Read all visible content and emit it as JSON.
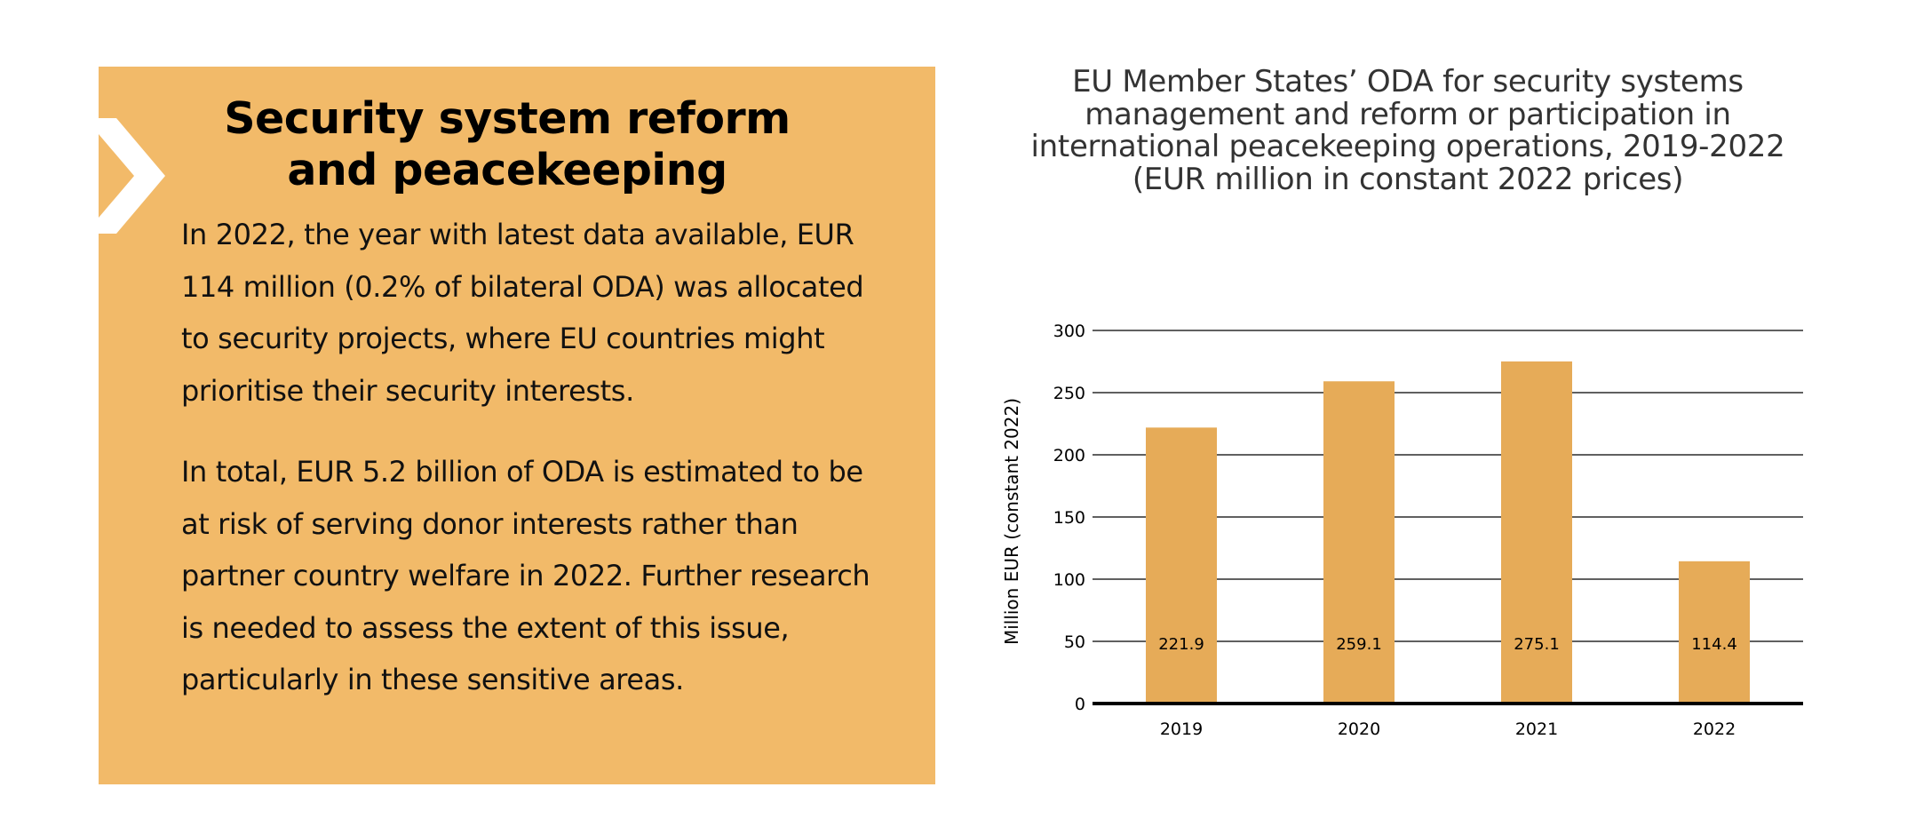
{
  "panel": {
    "title": "Security system reform and peacekeeping",
    "paragraph1": "In 2022, the year with latest data available, EUR 114 million (0.2% of bilateral ODA) was allocated to security projects, where EU countries might prioritise their security interests.",
    "paragraph2": "In total, EUR 5.2 billion of ODA is estimated to be at risk of serving donor interests rather than partner country welfare in 2022. Further research is needed to assess the extent of this issue, particularly in these sensitive areas.",
    "background_color": "#f2ba69",
    "icon": "chevron-right-icon"
  },
  "chart_data": {
    "type": "bar",
    "title": "EU Member States’ ODA for security systems management and reform or participation in international peacekeeping operations, 2019-2022 (EUR million in constant 2022 prices)",
    "xlabel": "",
    "ylabel": "Million EUR (constant 2022)",
    "categories": [
      "2019",
      "2020",
      "2021",
      "2022"
    ],
    "values": [
      221.9,
      259.1,
      275.1,
      114.4
    ],
    "value_labels": [
      "221.9",
      "259.1",
      "275.1",
      "114.4"
    ],
    "ylim": [
      0,
      300
    ],
    "yticks": [
      0,
      50,
      100,
      150,
      200,
      250,
      300
    ],
    "grid": true,
    "bar_color": "#e6ab58",
    "legend": "none"
  }
}
